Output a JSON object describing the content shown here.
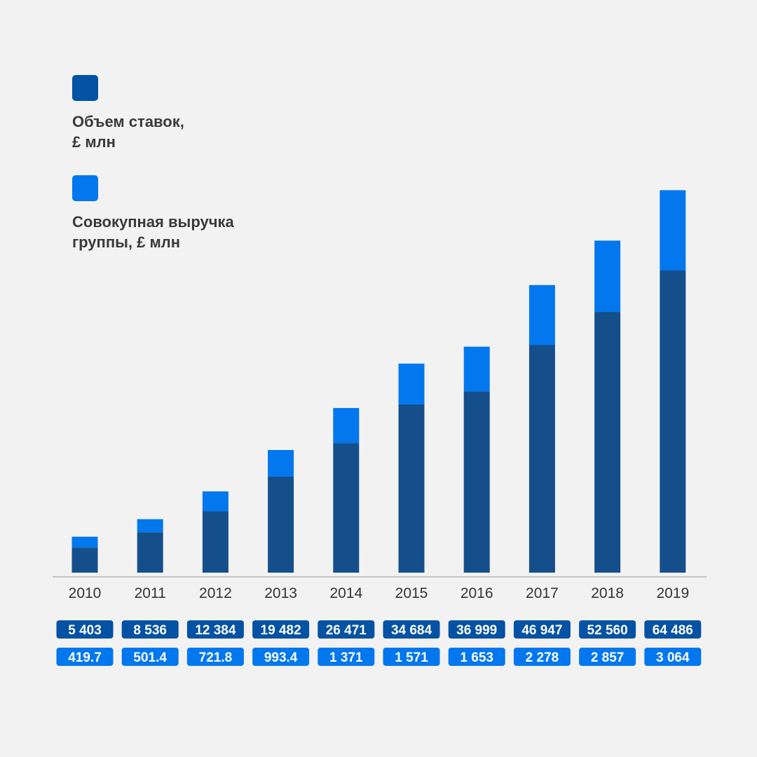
{
  "colors": {
    "background": "#f2f2f2",
    "stakes": "#154f8b",
    "revenue": "#0277ee",
    "stakes_legend": "#0352a3",
    "axis": "#b5b5b5",
    "label_text": "#ffffff"
  },
  "legend": [
    {
      "key": "stakes",
      "line1": "Объем ставок,",
      "line2": "£ млн"
    },
    {
      "key": "revenue",
      "line1": "Совокупная выручка",
      "line2": "группы, £ млн"
    }
  ],
  "chart_data": {
    "type": "bar",
    "stacked": true,
    "title": "",
    "xlabel": "",
    "ylabel": "",
    "categories": [
      "2010",
      "2011",
      "2012",
      "2013",
      "2014",
      "2015",
      "2016",
      "2017",
      "2018",
      "2019"
    ],
    "series": [
      {
        "key": "stakes",
        "name": "Объем ставок, £ млн",
        "values": [
          5403,
          8536,
          12384,
          19482,
          26471,
          34684,
          36999,
          46947,
          52560,
          64486
        ],
        "labels": [
          "5 403",
          "8 536",
          "12 384",
          "19 482",
          "26 471",
          "34 684",
          "36 999",
          "46 947",
          "52 560",
          "64 486"
        ]
      },
      {
        "key": "revenue",
        "name": "Совокупная выручка группы, £ млн",
        "values": [
          419.7,
          501.4,
          721.8,
          993.4,
          1371,
          1571,
          1653,
          2278,
          2857,
          3064
        ],
        "labels": [
          "419.7",
          "501.4",
          "721.8",
          "993.4",
          "1 371",
          "1 571",
          "1 653",
          "2 278",
          "2 857",
          "3 064"
        ]
      }
    ],
    "bar_segment_shares": {
      "stakes": [
        0.083,
        0.134,
        0.203,
        0.318,
        0.429,
        0.557,
        0.6,
        0.754,
        0.863,
        1.0
      ],
      "revenue": [
        0.036,
        0.043,
        0.066,
        0.088,
        0.116,
        0.135,
        0.148,
        0.198,
        0.236,
        0.266
      ]
    },
    "legend_position": "top-left",
    "grid": false
  }
}
